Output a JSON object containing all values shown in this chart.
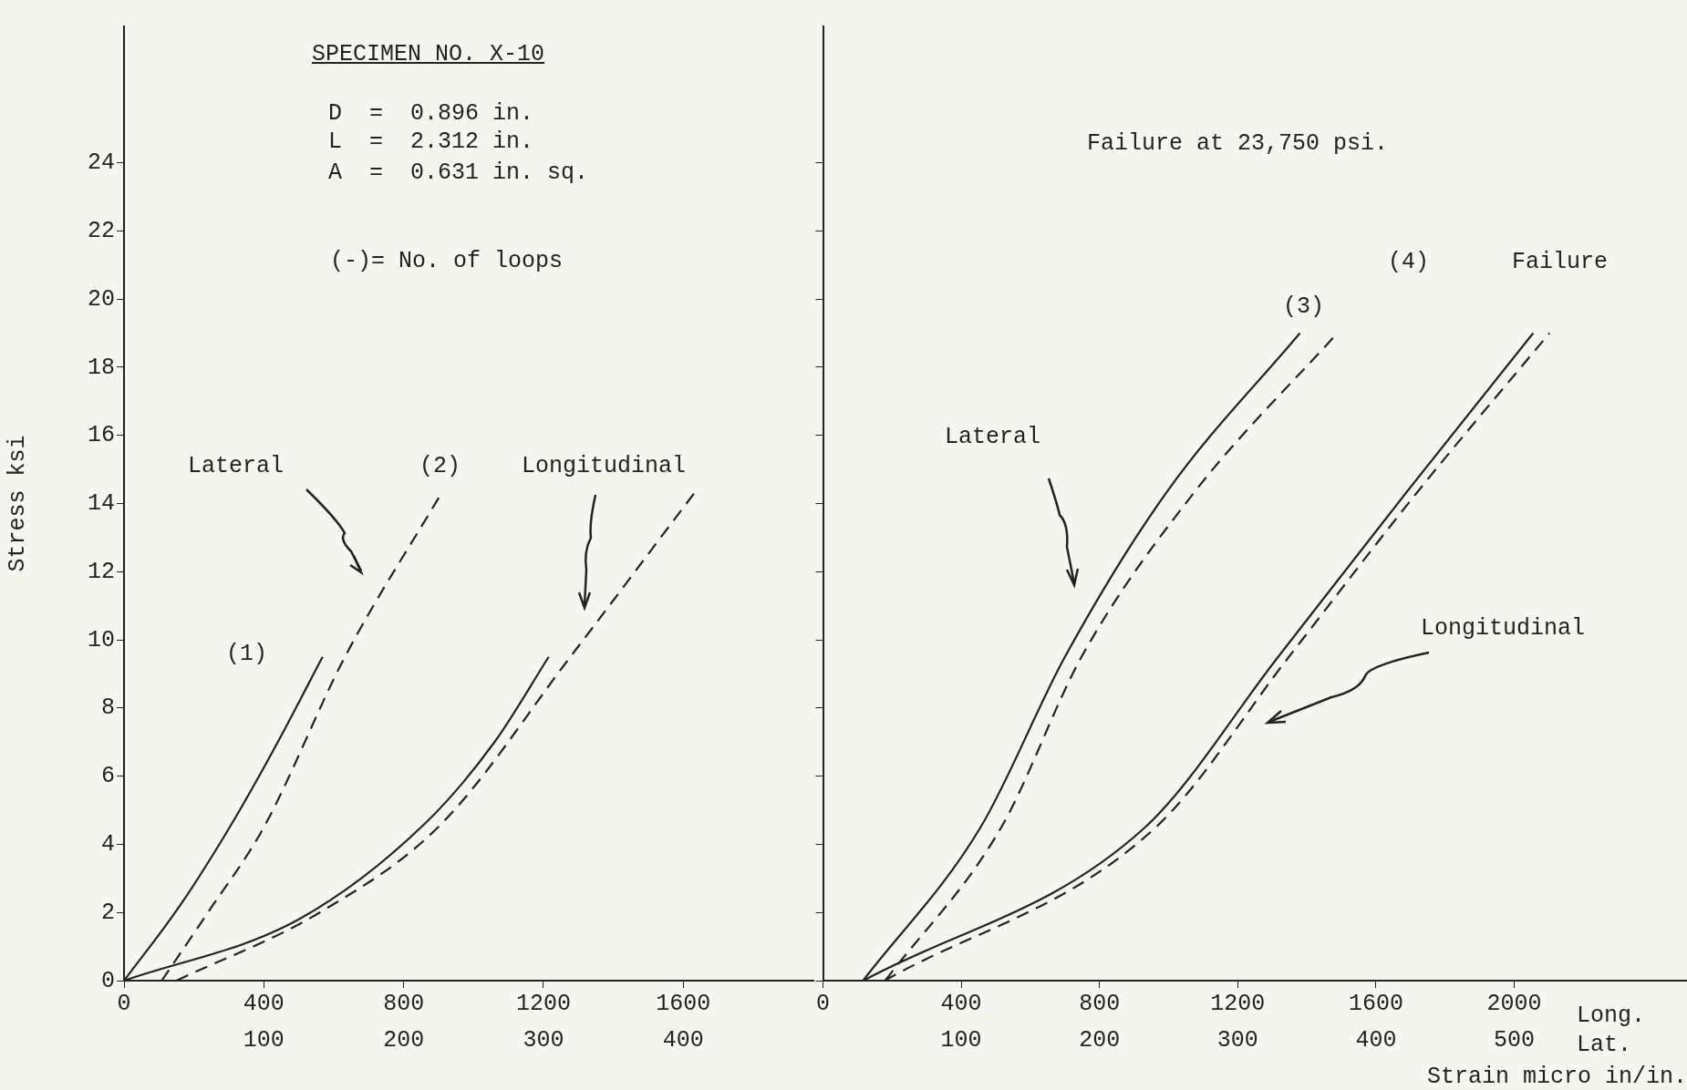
{
  "chart_data": [
    {
      "type": "line",
      "ylabel": "Stress ksi",
      "xlim": [
        0,
        1975
      ],
      "xticks": [
        0,
        400,
        800,
        1200,
        1600
      ],
      "x2lim": [
        0,
        493.75
      ],
      "x2ticks": [
        100,
        200,
        300,
        400
      ],
      "ylim": [
        0,
        28
      ],
      "yticks": [
        0,
        2,
        4,
        6,
        8,
        10,
        12,
        14,
        16,
        18,
        20,
        22,
        24
      ],
      "series": [
        {
          "color": "#222222",
          "axis": "x2",
          "line_style": "solid",
          "x": [
            0,
            40,
            77,
            110,
            142
          ],
          "values": [
            0,
            2.2,
            4.6,
            7,
            9.5
          ]
        },
        {
          "color": "#222222",
          "axis": "x2",
          "line_style": "dashed",
          "x": [
            27,
            60,
            100,
            158,
            227
          ],
          "values": [
            0,
            2,
            4.5,
            9.5,
            14.3
          ]
        },
        {
          "color": "#222222",
          "line_style": "solid",
          "x": [
            0,
            500,
            860,
            1060,
            1215
          ],
          "values": [
            0,
            1.8,
            4.6,
            7,
            9.5
          ]
        },
        {
          "color": "#222222",
          "line_style": "dashed",
          "x": [
            150,
            560,
            908,
            1277,
            1631
          ],
          "values": [
            0,
            2,
            4.6,
            9.5,
            14.3
          ]
        }
      ],
      "annotations": [
        "SPECIMEN NO. X-10",
        "D  =  0.896 in.",
        "L  =  2.312 in.",
        "A  =  0.631 in. sq.",
        "(-)= No. of loops",
        "Lateral",
        "(2)",
        "Longitudinal",
        "(1)"
      ]
    },
    {
      "type": "line",
      "xlabel": "Strain micro in/in.",
      "tick_labels": "x",
      "xlim": [
        0,
        2500
      ],
      "xticks": [
        0,
        400,
        800,
        1200,
        1600,
        2000
      ],
      "x2lim": [
        0,
        625
      ],
      "x2ticks": [
        100,
        200,
        300,
        400,
        500
      ],
      "ylim": [
        0,
        28
      ],
      "yticks": [
        0,
        2,
        4,
        6,
        8,
        10,
        12,
        14,
        16,
        18,
        20,
        22,
        24
      ],
      "series": [
        {
          "color": "#222222",
          "axis": "x2",
          "line_style": "solid",
          "x": [
            29,
            114,
            175,
            248,
            345
          ],
          "values": [
            0,
            4.5,
            9.5,
            14.3,
            19
          ]
        },
        {
          "color": "#222222",
          "axis": "x2",
          "line_style": "dashed",
          "x": [
            45,
            129,
            187,
            268,
            372
          ],
          "values": [
            0,
            4.5,
            9.5,
            14.3,
            19
          ]
        },
        {
          "color": "#222222",
          "line_style": "solid",
          "x": [
            117,
            932,
            1317,
            1686,
            2055
          ],
          "values": [
            0,
            4.5,
            9.5,
            14.3,
            19
          ]
        },
        {
          "color": "#222222",
          "line_style": "dashed",
          "x": [
            178,
            963,
            1348,
            1717,
            2102
          ],
          "values": [
            0,
            4.5,
            9.5,
            14.3,
            19
          ]
        }
      ],
      "annotations": [
        "Failure at 23,750 psi.",
        "(4)",
        "Failure",
        "(3)",
        "Lateral",
        "Longitudinal",
        "Long.",
        "Lat."
      ]
    }
  ]
}
